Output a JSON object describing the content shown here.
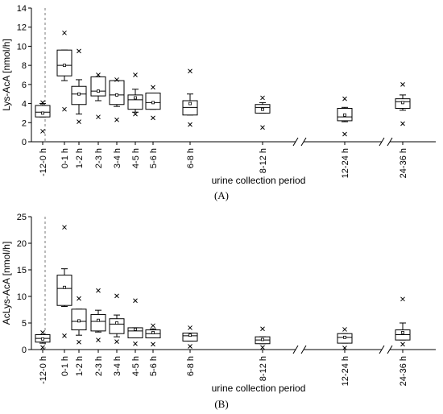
{
  "chart_data": [
    {
      "type": "box",
      "panel_label": "(A)",
      "ylabel": "Lys-AcA [nmol/h]",
      "xlabel": "urine collection period",
      "ylim": [
        0,
        14
      ],
      "yticks": [
        0,
        2,
        4,
        6,
        8,
        10,
        12,
        14
      ],
      "categories": [
        "-12-0 h",
        "0-1 h",
        "1-2 h",
        "2-3 h",
        "3-4 h",
        "4-5 h",
        "5-6 h",
        "6-8 h",
        "8-12 h",
        "12-24 h",
        "24-36 h"
      ],
      "boxes": [
        {
          "min": 2.6,
          "q1": 2.6,
          "median": 3.1,
          "q3": 3.8,
          "max": 4.0,
          "mean": 3.0,
          "outliers": [
            4.1,
            1.1
          ]
        },
        {
          "min": 6.4,
          "q1": 6.9,
          "median": 8.0,
          "q3": 9.6,
          "max": 9.6,
          "mean": 8.0,
          "outliers": [
            11.4,
            3.4
          ]
        },
        {
          "min": 2.9,
          "q1": 3.9,
          "median": 5.0,
          "q3": 5.8,
          "max": 6.5,
          "mean": 5.0,
          "outliers": [
            9.5,
            2.1
          ]
        },
        {
          "min": 4.3,
          "q1": 4.8,
          "median": 5.3,
          "q3": 6.8,
          "max": 6.8,
          "mean": 5.3,
          "outliers": [
            7.0,
            2.6
          ]
        },
        {
          "min": 3.7,
          "q1": 3.9,
          "median": 4.9,
          "q3": 6.4,
          "max": 6.4,
          "mean": 4.9,
          "outliers": [
            6.5,
            2.3
          ]
        },
        {
          "min": 3.1,
          "q1": 3.4,
          "median": 4.4,
          "q3": 4.9,
          "max": 5.5,
          "mean": 4.6,
          "outliers": [
            7.0,
            2.9
          ]
        },
        {
          "min": 3.4,
          "q1": 3.4,
          "median": 4.1,
          "q3": 5.1,
          "max": 5.1,
          "mean": 4.1,
          "outliers": [
            5.7,
            2.5
          ]
        },
        {
          "min": 2.8,
          "q1": 2.8,
          "median": 3.6,
          "q3": 4.3,
          "max": 5.0,
          "mean": 4.0,
          "outliers": [
            7.4,
            1.8
          ]
        },
        {
          "min": 3.0,
          "q1": 3.0,
          "median": 3.6,
          "q3": 3.9,
          "max": 4.1,
          "mean": 3.4,
          "outliers": [
            4.6,
            1.5
          ]
        },
        {
          "min": 2.1,
          "q1": 2.2,
          "median": 2.6,
          "q3": 3.5,
          "max": 3.6,
          "mean": 2.8,
          "outliers": [
            4.5,
            0.8
          ]
        },
        {
          "min": 3.3,
          "q1": 3.5,
          "median": 4.2,
          "q3": 4.5,
          "max": 4.9,
          "mean": 4.1,
          "outliers": [
            6.0,
            1.9
          ]
        }
      ],
      "reference_line_after": "-12-0 h",
      "axis_breaks_after": [
        "8-12 h",
        "12-24 h"
      ]
    },
    {
      "type": "box",
      "panel_label": "(B)",
      "ylabel": "AcLys-AcA [nmol/h]",
      "xlabel": "urine collection period",
      "ylim": [
        0,
        25
      ],
      "yticks": [
        0,
        5,
        10,
        15,
        20,
        25
      ],
      "categories": [
        "-12-0 h",
        "0-1 h",
        "1-2 h",
        "2-3 h",
        "3-4 h",
        "4-5 h",
        "5-6 h",
        "6-8 h",
        "8-12 h",
        "12-24 h",
        "24-36 h"
      ],
      "boxes": [
        {
          "min": 1.2,
          "q1": 1.4,
          "median": 2.1,
          "q3": 2.8,
          "max": 2.8,
          "mean": 2.0,
          "outliers": [
            3.2,
            0.4
          ]
        },
        {
          "min": 8.1,
          "q1": 8.3,
          "median": 11.5,
          "q3": 14.0,
          "max": 15.2,
          "mean": 11.7,
          "outliers": [
            23.0,
            2.6
          ]
        },
        {
          "min": 2.7,
          "q1": 3.7,
          "median": 5.3,
          "q3": 7.6,
          "max": 7.6,
          "mean": 5.4,
          "outliers": [
            9.6,
            1.4
          ]
        },
        {
          "min": 3.3,
          "q1": 3.5,
          "median": 5.3,
          "q3": 6.6,
          "max": 7.4,
          "mean": 5.5,
          "outliers": [
            11.1,
            1.8
          ]
        },
        {
          "min": 2.4,
          "q1": 3.0,
          "median": 4.8,
          "q3": 5.8,
          "max": 6.5,
          "mean": 5.0,
          "outliers": [
            10.1,
            1.5
          ]
        },
        {
          "min": 2.2,
          "q1": 2.2,
          "median": 3.5,
          "q3": 4.1,
          "max": 4.1,
          "mean": 3.8,
          "outliers": [
            9.2,
            1.1
          ]
        },
        {
          "min": 2.2,
          "q1": 2.2,
          "median": 3.0,
          "q3": 3.7,
          "max": 3.9,
          "mean": 3.2,
          "outliers": [
            4.5,
            1.0
          ]
        },
        {
          "min": 1.6,
          "q1": 1.6,
          "median": 2.6,
          "q3": 3.1,
          "max": 3.1,
          "mean": 2.7,
          "outliers": [
            4.1,
            0.6
          ]
        },
        {
          "min": 1.1,
          "q1": 1.1,
          "median": 1.8,
          "q3": 2.4,
          "max": 2.4,
          "mean": 1.9,
          "outliers": [
            3.9,
            0.4
          ]
        },
        {
          "min": 1.2,
          "q1": 1.2,
          "median": 2.3,
          "q3": 3.0,
          "max": 3.0,
          "mean": 2.3,
          "outliers": [
            3.8,
            0.3
          ]
        },
        {
          "min": 1.8,
          "q1": 1.8,
          "median": 2.8,
          "q3": 3.7,
          "max": 5.0,
          "mean": 3.2,
          "outliers": [
            9.5,
            1.0
          ]
        }
      ],
      "reference_line_after": "-12-0 h",
      "axis_breaks_after": [
        "8-12 h",
        "12-24 h"
      ]
    }
  ]
}
